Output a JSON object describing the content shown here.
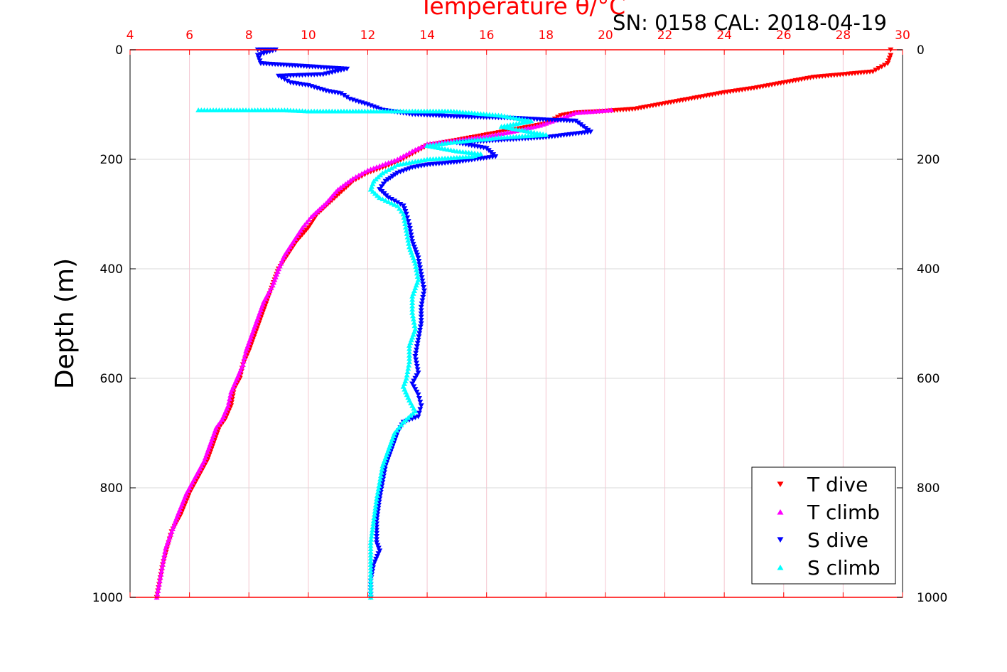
{
  "chart_data": {
    "type": "scatter",
    "title": "Temperature θ/°C",
    "annotation": "SN: 0158  CAL: 2018-04-19",
    "xlabel": "Temperature θ/°C",
    "ylabel": "Depth (m)",
    "xlim": [
      4,
      30
    ],
    "ylim": [
      1000,
      0
    ],
    "x_ticks": [
      "4",
      "6",
      "8",
      "10",
      "12",
      "14",
      "16",
      "18",
      "20",
      "22",
      "24",
      "26",
      "28",
      "30"
    ],
    "y_ticks": [
      "0",
      "200",
      "400",
      "600",
      "800",
      "1000"
    ],
    "x_axis_position": "top",
    "y_axis_inverted": true,
    "grid": true,
    "legend_position": "bottom-right",
    "colors": {
      "t_dive": "#ff0000",
      "t_climb": "#ff00ff",
      "s_dive": "#0000ff",
      "s_climb": "#00ffff",
      "x_axis": "#ff0000",
      "grid": "#d9d9d9"
    },
    "series": [
      {
        "name": "T dive",
        "marker": "triangle-down",
        "color": "#ff0000",
        "points": [
          [
            29.6,
            0
          ],
          [
            29.6,
            10
          ],
          [
            29.5,
            25
          ],
          [
            29.0,
            40
          ],
          [
            28.0,
            45
          ],
          [
            27.0,
            50
          ],
          [
            26.0,
            60
          ],
          [
            25.0,
            70
          ],
          [
            24.0,
            78
          ],
          [
            23.0,
            88
          ],
          [
            22.0,
            98
          ],
          [
            21.5,
            103
          ],
          [
            21.0,
            108
          ],
          [
            20.0,
            112
          ],
          [
            19.0,
            115
          ],
          [
            18.5,
            120
          ],
          [
            18.0,
            135
          ],
          [
            17.0,
            145
          ],
          [
            16.0,
            155
          ],
          [
            15.0,
            165
          ],
          [
            14.0,
            175
          ],
          [
            13.5,
            190
          ],
          [
            13.0,
            205
          ],
          [
            12.5,
            215
          ],
          [
            12.0,
            225
          ],
          [
            11.5,
            240
          ],
          [
            11.2,
            255
          ],
          [
            10.8,
            275
          ],
          [
            10.3,
            300
          ],
          [
            10.0,
            325
          ],
          [
            9.6,
            350
          ],
          [
            9.3,
            375
          ],
          [
            9.0,
            400
          ],
          [
            8.8,
            430
          ],
          [
            8.6,
            460
          ],
          [
            8.4,
            490
          ],
          [
            8.2,
            520
          ],
          [
            8.0,
            550
          ],
          [
            7.8,
            575
          ],
          [
            7.7,
            600
          ],
          [
            7.5,
            620
          ],
          [
            7.4,
            650
          ],
          [
            7.2,
            675
          ],
          [
            7.0,
            690
          ],
          [
            6.8,
            720
          ],
          [
            6.6,
            750
          ],
          [
            6.3,
            780
          ],
          [
            6.0,
            810
          ],
          [
            5.7,
            850
          ],
          [
            5.4,
            880
          ],
          [
            5.3,
            900
          ],
          [
            5.1,
            940
          ],
          [
            5.0,
            970
          ],
          [
            4.9,
            1000
          ]
        ]
      },
      {
        "name": "T climb",
        "marker": "triangle-up",
        "color": "#ff00ff",
        "points": [
          [
            20.2,
            110
          ],
          [
            19.5,
            113
          ],
          [
            19.0,
            115
          ],
          [
            18.5,
            125
          ],
          [
            17.8,
            138
          ],
          [
            17.0,
            148
          ],
          [
            16.0,
            158
          ],
          [
            15.0,
            165
          ],
          [
            14.0,
            172
          ],
          [
            13.5,
            185
          ],
          [
            13.0,
            200
          ],
          [
            12.5,
            210
          ],
          [
            12.0,
            220
          ],
          [
            11.5,
            235
          ],
          [
            11.0,
            255
          ],
          [
            10.6,
            280
          ],
          [
            10.1,
            305
          ],
          [
            9.8,
            325
          ],
          [
            9.5,
            350
          ],
          [
            9.2,
            375
          ],
          [
            9.0,
            400
          ],
          [
            8.8,
            430
          ],
          [
            8.5,
            460
          ],
          [
            8.3,
            490
          ],
          [
            8.1,
            520
          ],
          [
            7.9,
            550
          ],
          [
            7.8,
            575
          ],
          [
            7.6,
            600
          ],
          [
            7.4,
            625
          ],
          [
            7.3,
            650
          ],
          [
            7.1,
            675
          ],
          [
            6.9,
            690
          ],
          [
            6.7,
            720
          ],
          [
            6.5,
            750
          ],
          [
            6.2,
            780
          ],
          [
            5.9,
            810
          ],
          [
            5.6,
            850
          ],
          [
            5.4,
            880
          ],
          [
            5.2,
            910
          ],
          [
            5.1,
            940
          ],
          [
            5.0,
            970
          ],
          [
            4.9,
            1000
          ]
        ]
      },
      {
        "name": "S dive",
        "marker": "triangle-down",
        "color": "#0000ff",
        "points": [
          [
            8.3,
            0
          ],
          [
            8.9,
            0
          ],
          [
            8.3,
            10
          ],
          [
            8.4,
            25
          ],
          [
            11.3,
            35
          ],
          [
            10.5,
            45
          ],
          [
            9.0,
            48
          ],
          [
            9.4,
            60
          ],
          [
            10.0,
            65
          ],
          [
            10.6,
            75
          ],
          [
            11.1,
            80
          ],
          [
            11.4,
            90
          ],
          [
            12.0,
            100
          ],
          [
            12.5,
            110
          ],
          [
            13.5,
            118
          ],
          [
            14.3,
            120
          ],
          [
            15.0,
            122
          ],
          [
            17.0,
            125
          ],
          [
            18.0,
            128
          ],
          [
            19.0,
            130
          ],
          [
            19.5,
            150
          ],
          [
            18.0,
            160
          ],
          [
            16.5,
            165
          ],
          [
            15.0,
            170
          ],
          [
            16.0,
            180
          ],
          [
            16.3,
            195
          ],
          [
            15.0,
            205
          ],
          [
            14.0,
            210
          ],
          [
            13.5,
            215
          ],
          [
            13.0,
            225
          ],
          [
            12.6,
            240
          ],
          [
            12.4,
            255
          ],
          [
            12.7,
            270
          ],
          [
            13.2,
            285
          ],
          [
            13.3,
            300
          ],
          [
            13.4,
            320
          ],
          [
            13.5,
            350
          ],
          [
            13.7,
            380
          ],
          [
            13.8,
            410
          ],
          [
            13.9,
            440
          ],
          [
            13.8,
            470
          ],
          [
            13.8,
            500
          ],
          [
            13.7,
            530
          ],
          [
            13.6,
            560
          ],
          [
            13.7,
            590
          ],
          [
            13.5,
            610
          ],
          [
            13.7,
            630
          ],
          [
            13.8,
            650
          ],
          [
            13.7,
            670
          ],
          [
            13.2,
            680
          ],
          [
            13.0,
            700
          ],
          [
            12.8,
            730
          ],
          [
            12.6,
            760
          ],
          [
            12.5,
            790
          ],
          [
            12.4,
            820
          ],
          [
            12.3,
            860
          ],
          [
            12.3,
            900
          ],
          [
            12.4,
            915
          ],
          [
            12.2,
            940
          ],
          [
            12.1,
            970
          ],
          [
            12.1,
            1000
          ]
        ]
      },
      {
        "name": "S climb",
        "marker": "triangle-up",
        "color": "#00ffff",
        "points": [
          [
            6.3,
            110
          ],
          [
            7.0,
            110
          ],
          [
            7.5,
            110
          ],
          [
            8.5,
            110
          ],
          [
            9.2,
            110
          ],
          [
            10.0,
            112
          ],
          [
            11.0,
            112
          ],
          [
            12.0,
            112
          ],
          [
            13.0,
            112
          ],
          [
            14.0,
            112
          ],
          [
            14.8,
            112
          ],
          [
            16.5,
            120
          ],
          [
            17.0,
            125
          ],
          [
            17.5,
            130
          ],
          [
            16.5,
            140
          ],
          [
            17.5,
            150
          ],
          [
            18.0,
            155
          ],
          [
            16.5,
            160
          ],
          [
            15.0,
            168
          ],
          [
            14.0,
            175
          ],
          [
            15.0,
            185
          ],
          [
            15.8,
            190
          ],
          [
            15.5,
            195
          ],
          [
            14.0,
            200
          ],
          [
            13.0,
            210
          ],
          [
            12.5,
            225
          ],
          [
            12.2,
            240
          ],
          [
            12.1,
            255
          ],
          [
            12.4,
            270
          ],
          [
            13.0,
            285
          ],
          [
            13.2,
            300
          ],
          [
            13.3,
            330
          ],
          [
            13.4,
            360
          ],
          [
            13.6,
            390
          ],
          [
            13.7,
            420
          ],
          [
            13.5,
            450
          ],
          [
            13.5,
            480
          ],
          [
            13.6,
            510
          ],
          [
            13.4,
            540
          ],
          [
            13.4,
            570
          ],
          [
            13.3,
            600
          ],
          [
            13.2,
            615
          ],
          [
            13.4,
            640
          ],
          [
            13.6,
            660
          ],
          [
            13.2,
            680
          ],
          [
            12.9,
            700
          ],
          [
            12.7,
            730
          ],
          [
            12.5,
            760
          ],
          [
            12.4,
            790
          ],
          [
            12.3,
            820
          ],
          [
            12.2,
            860
          ],
          [
            12.1,
            900
          ],
          [
            12.1,
            940
          ],
          [
            12.1,
            970
          ],
          [
            12.1,
            1000
          ]
        ]
      }
    ]
  }
}
